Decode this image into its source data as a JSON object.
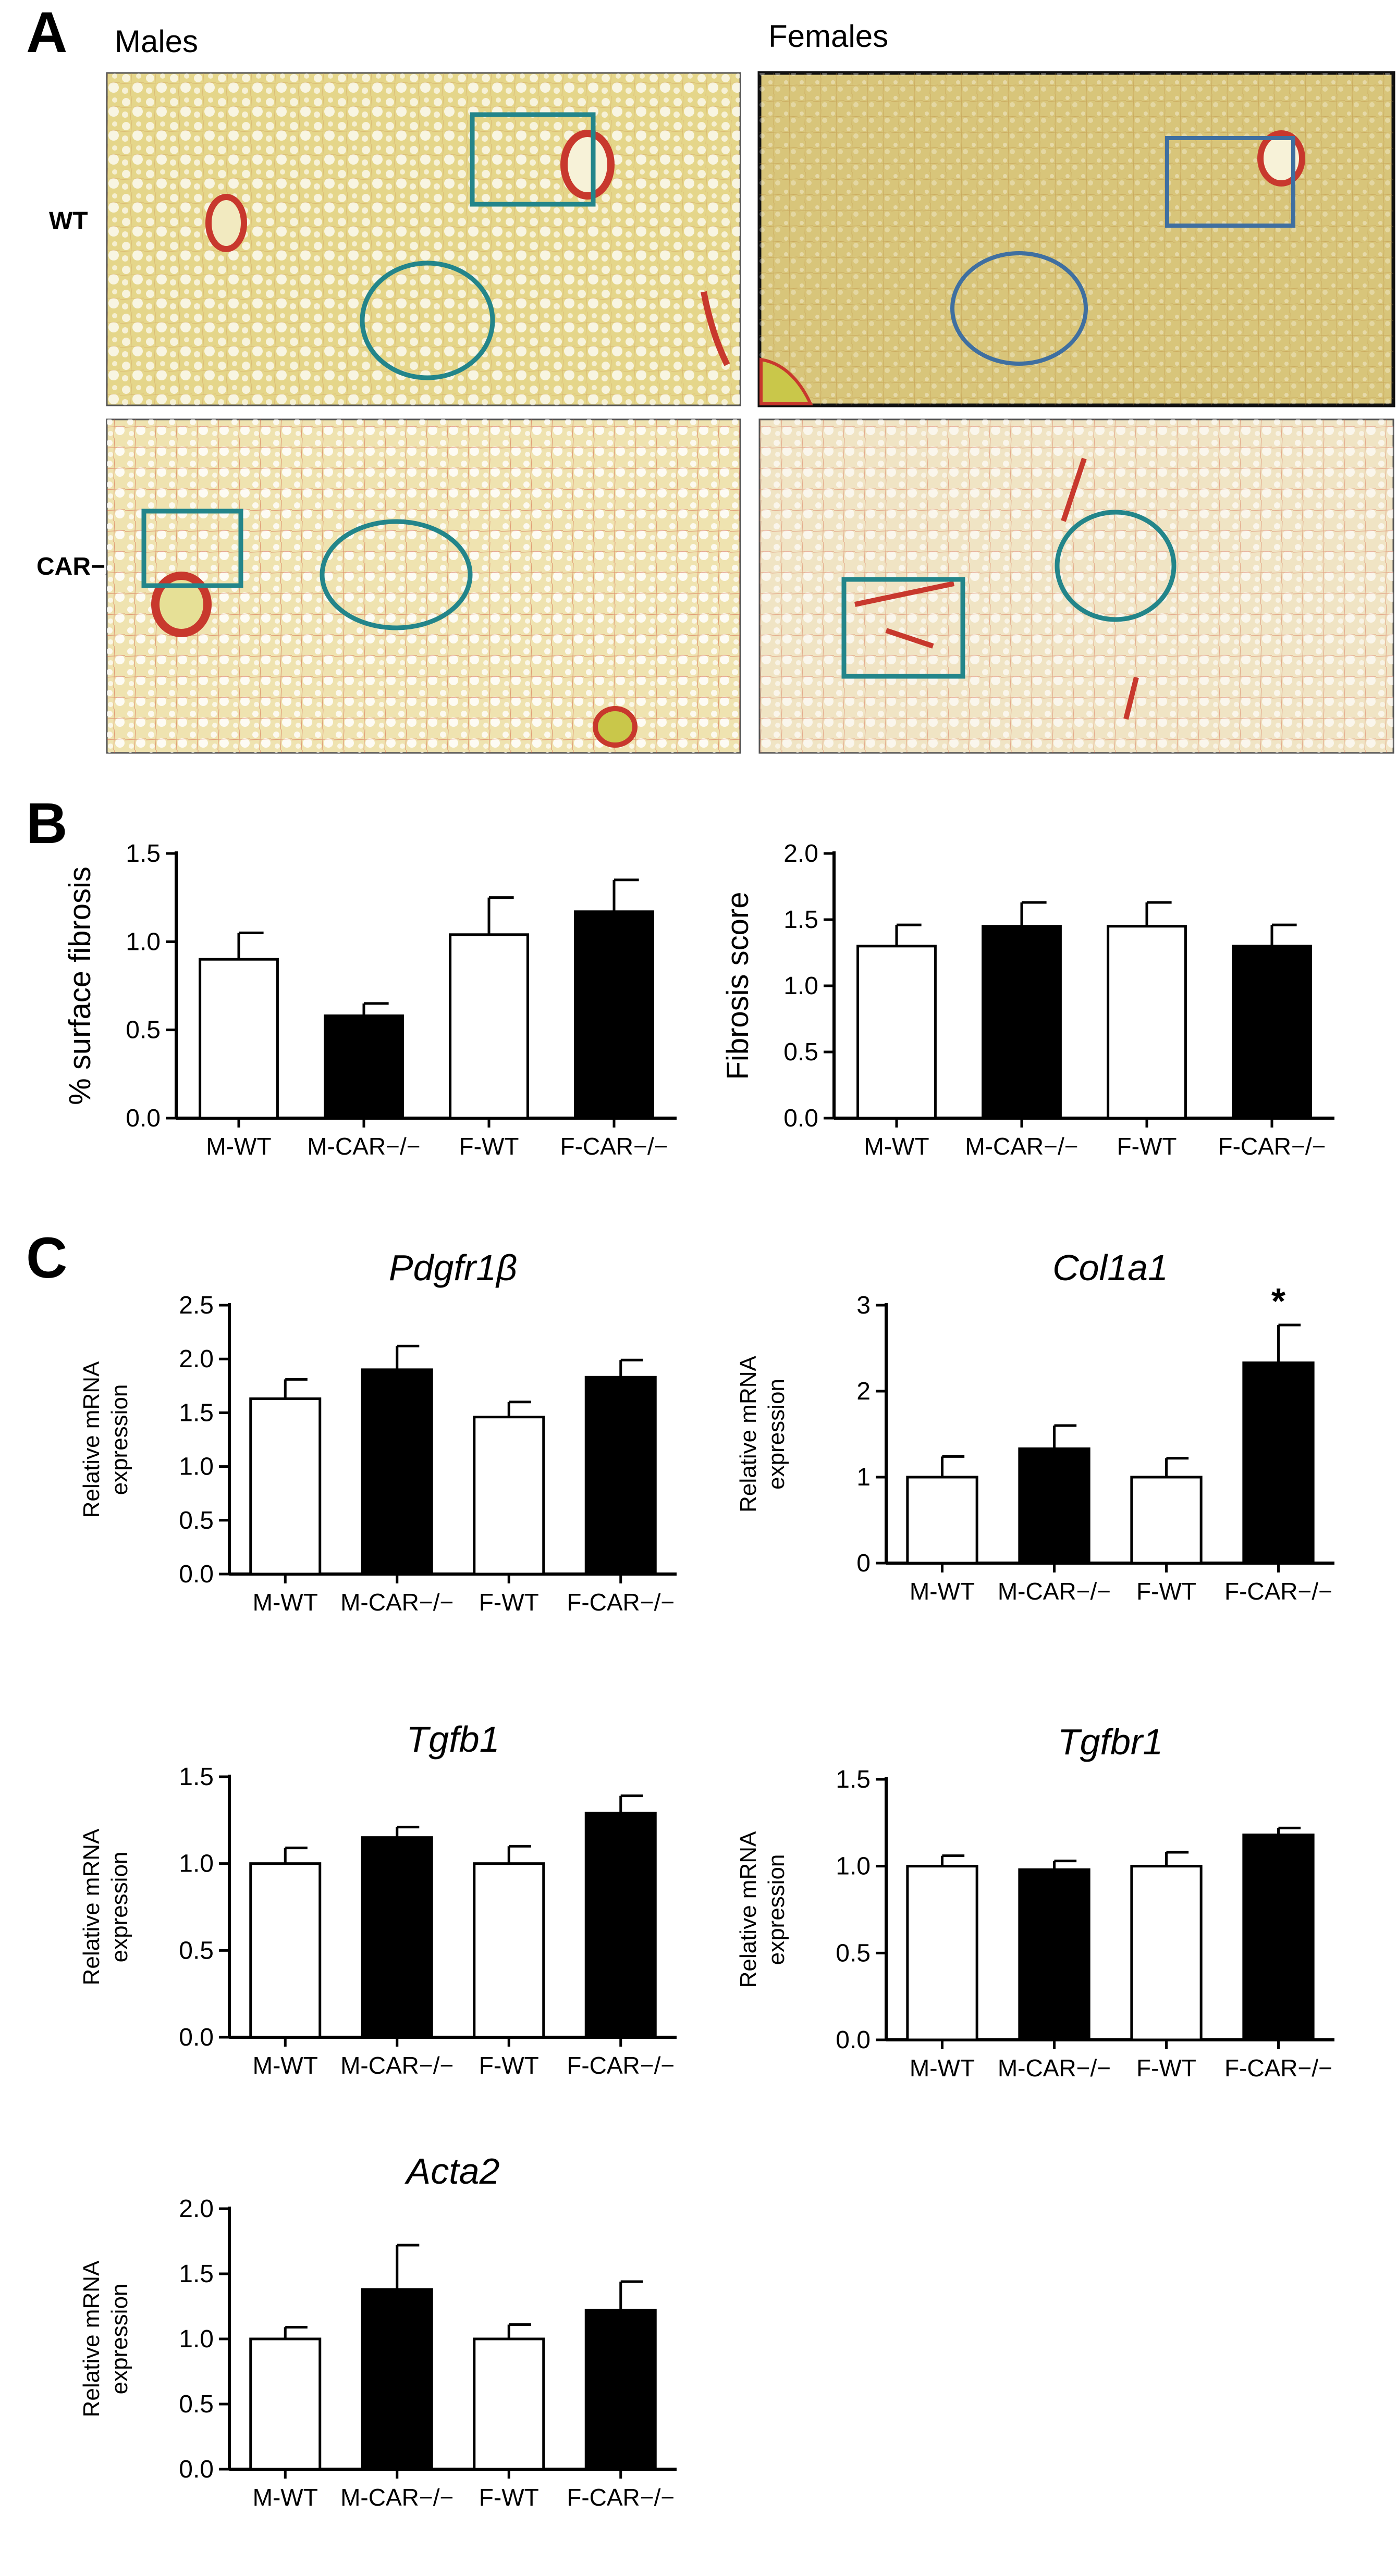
{
  "panel_a": {
    "panel_letter": "A",
    "column_labels": [
      "Males",
      "Females"
    ],
    "row_labels": [
      "WT",
      "CAR−/−"
    ],
    "colors": {
      "tissue": "#e2d58a",
      "tissue_light": "#efe6b4",
      "collagen": "#c8382d",
      "marker": "#23858a",
      "marker_blue": "#3f6fa0"
    }
  },
  "panel_b_letter": "B",
  "panel_c_letter": "C",
  "chart_data": [
    {
      "type": "bar",
      "title": "",
      "xlabel": "",
      "ylabel": "% surface fibrosis",
      "categories": [
        "M-WT",
        "M-CAR−/−",
        "F-WT",
        "F-CAR−/−"
      ],
      "values": [
        0.9,
        0.58,
        1.04,
        1.17
      ],
      "errors": [
        0.15,
        0.07,
        0.21,
        0.18
      ],
      "fills": [
        "white",
        "black",
        "white",
        "black"
      ],
      "ylim": [
        0,
        1.5
      ],
      "yticks": [
        "0.0",
        "0.5",
        "1.0",
        "1.5"
      ],
      "annotations": []
    },
    {
      "type": "bar",
      "title": "",
      "xlabel": "",
      "ylabel": "Fibrosis score",
      "categories": [
        "M-WT",
        "M-CAR−/−",
        "F-WT",
        "F-CAR−/−"
      ],
      "values": [
        1.3,
        1.45,
        1.45,
        1.3
      ],
      "errors": [
        0.16,
        0.18,
        0.18,
        0.16
      ],
      "fills": [
        "white",
        "black",
        "white",
        "black"
      ],
      "ylim": [
        0,
        2
      ],
      "yticks": [
        "0.0",
        "0.5",
        "1.0",
        "1.5",
        "2.0"
      ],
      "annotations": []
    },
    {
      "type": "bar",
      "title": "Pdgfr1β",
      "xlabel": "",
      "ylabel": "Relative mRNA expression",
      "categories": [
        "M-WT",
        "M-CAR−/−",
        "F-WT",
        "F-CAR−/−"
      ],
      "values": [
        1.63,
        1.9,
        1.46,
        1.83
      ],
      "errors": [
        0.18,
        0.22,
        0.14,
        0.16
      ],
      "fills": [
        "white",
        "black",
        "white",
        "black"
      ],
      "ylim": [
        0,
        2.5
      ],
      "yticks": [
        "0.0",
        "0.5",
        "1.0",
        "1.5",
        "2.0",
        "2.5"
      ],
      "annotations": []
    },
    {
      "type": "bar",
      "title": "Col1a1",
      "xlabel": "",
      "ylabel": "Relative mRNA expression",
      "categories": [
        "M-WT",
        "M-CAR−/−",
        "F-WT",
        "F-CAR−/−"
      ],
      "values": [
        1.0,
        1.33,
        1.0,
        2.33
      ],
      "errors": [
        0.24,
        0.27,
        0.22,
        0.44
      ],
      "fills": [
        "white",
        "black",
        "white",
        "black"
      ],
      "ylim": [
        0,
        3
      ],
      "yticks": [
        "0",
        "1",
        "2",
        "3"
      ],
      "annotations": [
        {
          "category_index": 3,
          "text": "*"
        }
      ]
    },
    {
      "type": "bar",
      "title": "Tgfb1",
      "xlabel": "",
      "ylabel": "Relative mRNA expression",
      "categories": [
        "M-WT",
        "M-CAR−/−",
        "F-WT",
        "F-CAR−/−"
      ],
      "values": [
        1.0,
        1.15,
        1.0,
        1.29
      ],
      "errors": [
        0.09,
        0.06,
        0.1,
        0.1
      ],
      "fills": [
        "white",
        "black",
        "white",
        "black"
      ],
      "ylim": [
        0,
        1.5
      ],
      "yticks": [
        "0.0",
        "0.5",
        "1.0",
        "1.5"
      ],
      "annotations": []
    },
    {
      "type": "bar",
      "title": "Tgfbr1",
      "xlabel": "",
      "ylabel": "Relative mRNA expression",
      "categories": [
        "M-WT",
        "M-CAR−/−",
        "F-WT",
        "F-CAR−/−"
      ],
      "values": [
        1.0,
        0.98,
        1.0,
        1.18
      ],
      "errors": [
        0.06,
        0.05,
        0.08,
        0.04
      ],
      "fills": [
        "white",
        "black",
        "white",
        "black"
      ],
      "ylim": [
        0,
        1.5
      ],
      "yticks": [
        "0.0",
        "0.5",
        "1.0",
        "1.5"
      ],
      "annotations": []
    },
    {
      "type": "bar",
      "title": "Acta2",
      "xlabel": "",
      "ylabel": "Relative mRNA expression",
      "categories": [
        "M-WT",
        "M-CAR−/−",
        "F-WT",
        "F-CAR−/−"
      ],
      "values": [
        1.0,
        1.38,
        1.0,
        1.22
      ],
      "errors": [
        0.09,
        0.34,
        0.11,
        0.22
      ],
      "fills": [
        "white",
        "black",
        "white",
        "black"
      ],
      "ylim": [
        0,
        2
      ],
      "yticks": [
        "0.0",
        "0.5",
        "1.0",
        "1.5",
        "2.0"
      ],
      "annotations": []
    }
  ]
}
